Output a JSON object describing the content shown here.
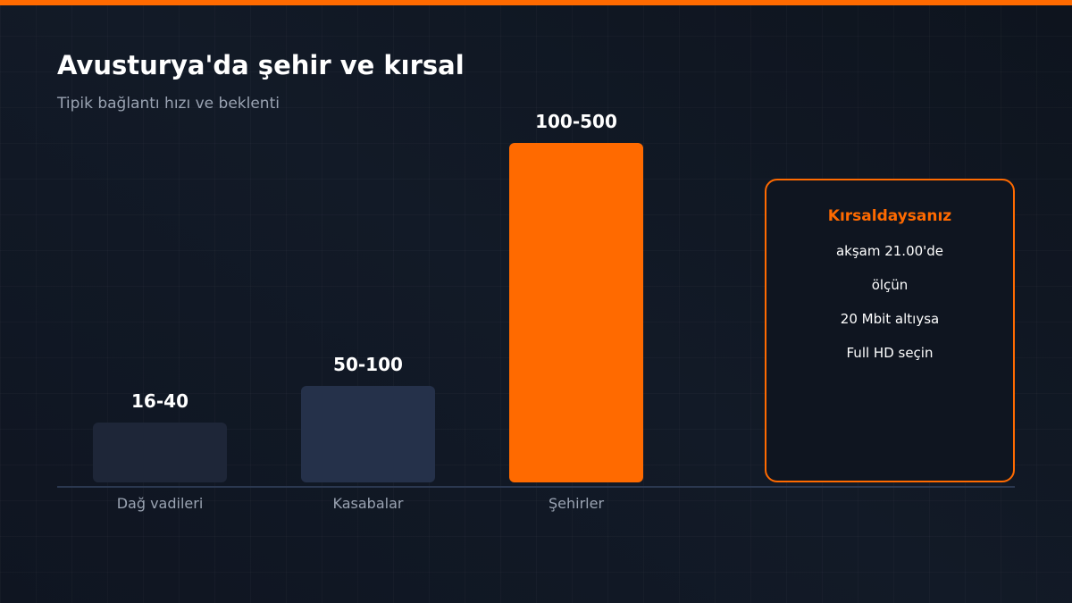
{
  "header": {
    "title": "Avusturya'da şehir ve kırsal",
    "subtitle": "Tipik bağlantı hızı ve beklenti"
  },
  "bars": [
    {
      "label": "Dağ vadileri",
      "value_label": "16-40"
    },
    {
      "label": "Kasabalar",
      "value_label": "50-100"
    },
    {
      "label": "Şehirler",
      "value_label": "100-500"
    }
  ],
  "note": {
    "title": "Kırsaldaysanız",
    "lines": [
      "akşam 21.00'de",
      "ölçün",
      "20 Mbit altıysa",
      "Full HD seçin"
    ]
  }
}
